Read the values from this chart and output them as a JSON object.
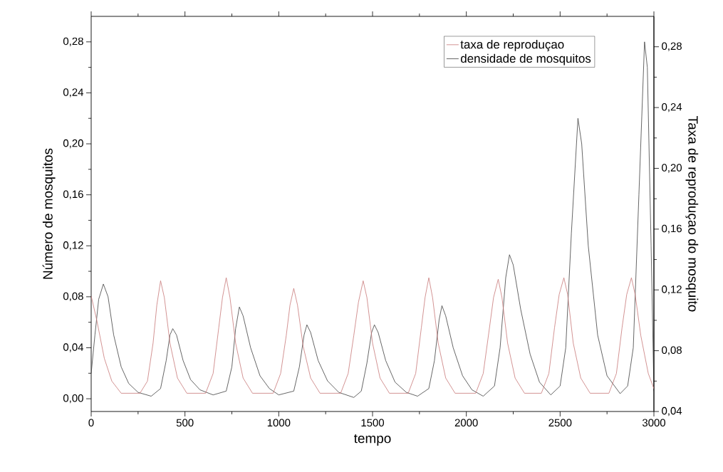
{
  "chart_data": {
    "type": "line",
    "xlabel": "tempo",
    "ylabel": "Número de mosquitos",
    "y2label": "Taxa de reproduçao do mosquito",
    "xlim": [
      0,
      3000
    ],
    "xticks": [
      0,
      500,
      1000,
      1500,
      2000,
      2500,
      3000
    ],
    "ylim": [
      -0.01,
      0.3
    ],
    "yticks": [
      {
        "value": 0,
        "label": "0,00"
      },
      {
        "value": 0.04,
        "label": "0,04"
      },
      {
        "value": 0.08,
        "label": "0,08"
      },
      {
        "value": 0.12,
        "label": "0,12"
      },
      {
        "value": 0.16,
        "label": "0,16"
      },
      {
        "value": 0.2,
        "label": "0,20"
      },
      {
        "value": 0.24,
        "label": "0,24"
      },
      {
        "value": 0.28,
        "label": "0,28"
      }
    ],
    "y2lim": [
      0.04,
      0.3
    ],
    "y2ticks": [
      {
        "value": 0.04,
        "label": "0,04"
      },
      {
        "value": 0.08,
        "label": "0,08"
      },
      {
        "value": 0.12,
        "label": "0,12"
      },
      {
        "value": 0.16,
        "label": "0,16"
      },
      {
        "value": 0.2,
        "label": "0,20"
      },
      {
        "value": 0.24,
        "label": "0,24"
      },
      {
        "value": 0.28,
        "label": "0,28"
      }
    ],
    "legend": "top right",
    "series": [
      {
        "name": "taxa de reproduçao",
        "color": "#c87878",
        "axis": "y2",
        "x": [
          0,
          30,
          70,
          110,
          160,
          260,
          300,
          330,
          350,
          370,
          390,
          420,
          460,
          510,
          610,
          650,
          680,
          700,
          720,
          740,
          770,
          810,
          860,
          970,
          1010,
          1040,
          1060,
          1080,
          1100,
          1130,
          1170,
          1220,
          1330,
          1370,
          1400,
          1425,
          1450,
          1470,
          1500,
          1540,
          1590,
          1690,
          1730,
          1760,
          1780,
          1800,
          1820,
          1850,
          1890,
          1940,
          2050,
          2090,
          2120,
          2145,
          2170,
          2190,
          2220,
          2260,
          2310,
          2400,
          2440,
          2470,
          2495,
          2520,
          2540,
          2570,
          2610,
          2660,
          2760,
          2800,
          2830,
          2855,
          2880,
          2900,
          2930,
          2970,
          3000
        ],
        "values": [
          0.116,
          0.1,
          0.075,
          0.06,
          0.052,
          0.052,
          0.06,
          0.085,
          0.11,
          0.126,
          0.115,
          0.085,
          0.062,
          0.052,
          0.052,
          0.065,
          0.095,
          0.115,
          0.128,
          0.115,
          0.085,
          0.062,
          0.052,
          0.052,
          0.065,
          0.09,
          0.11,
          0.121,
          0.11,
          0.083,
          0.062,
          0.052,
          0.052,
          0.065,
          0.09,
          0.112,
          0.126,
          0.115,
          0.085,
          0.062,
          0.052,
          0.052,
          0.065,
          0.095,
          0.115,
          0.128,
          0.115,
          0.085,
          0.062,
          0.052,
          0.052,
          0.065,
          0.092,
          0.115,
          0.127,
          0.115,
          0.085,
          0.062,
          0.052,
          0.052,
          0.065,
          0.095,
          0.117,
          0.128,
          0.117,
          0.085,
          0.062,
          0.052,
          0.052,
          0.065,
          0.095,
          0.117,
          0.128,
          0.117,
          0.09,
          0.065,
          0.055
        ]
      },
      {
        "name": "densidade de mosquitos",
        "color": "#404040",
        "x": [
          0,
          20,
          40,
          65,
          90,
          120,
          160,
          200,
          250,
          320,
          370,
          400,
          420,
          435,
          455,
          490,
          530,
          580,
          650,
          720,
          750,
          770,
          790,
          810,
          850,
          900,
          950,
          1000,
          1080,
          1110,
          1135,
          1150,
          1170,
          1210,
          1260,
          1320,
          1400,
          1440,
          1470,
          1495,
          1510,
          1530,
          1570,
          1620,
          1680,
          1740,
          1800,
          1830,
          1855,
          1870,
          1890,
          1930,
          1980,
          2030,
          2090,
          2150,
          2180,
          2210,
          2230,
          2250,
          2290,
          2340,
          2390,
          2450,
          2500,
          2530,
          2560,
          2595,
          2615,
          2650,
          2700,
          2750,
          2820,
          2860,
          2890,
          2920,
          2950,
          2965,
          2985,
          3000
        ],
        "values": [
          0.02,
          0.05,
          0.078,
          0.09,
          0.08,
          0.05,
          0.025,
          0.012,
          0.005,
          0.002,
          0.008,
          0.03,
          0.05,
          0.055,
          0.05,
          0.03,
          0.015,
          0.007,
          0.003,
          0.006,
          0.025,
          0.055,
          0.072,
          0.065,
          0.04,
          0.018,
          0.008,
          0.003,
          0.006,
          0.025,
          0.05,
          0.058,
          0.052,
          0.03,
          0.014,
          0.005,
          0.001,
          0.006,
          0.028,
          0.052,
          0.058,
          0.052,
          0.03,
          0.013,
          0.005,
          0.002,
          0.008,
          0.03,
          0.062,
          0.073,
          0.065,
          0.04,
          0.018,
          0.007,
          0.002,
          0.01,
          0.04,
          0.095,
          0.113,
          0.105,
          0.07,
          0.035,
          0.013,
          0.003,
          0.01,
          0.04,
          0.13,
          0.22,
          0.2,
          0.12,
          0.05,
          0.018,
          0.004,
          0.01,
          0.04,
          0.16,
          0.28,
          0.26,
          0.12,
          0.006
        ]
      }
    ]
  }
}
